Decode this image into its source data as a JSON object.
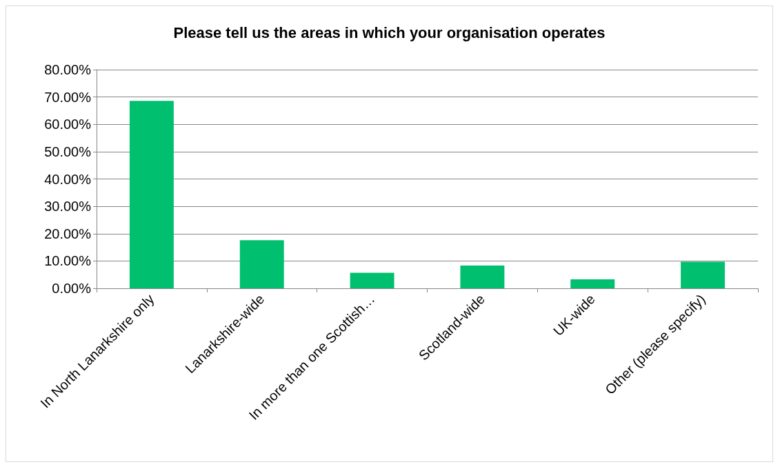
{
  "chart_data": {
    "type": "bar",
    "title": "Please tell us the areas in which your organisation operates",
    "categories": [
      "In North Lanarkshire only",
      "Lanarkshire-wide",
      "In more than one Scottish…",
      "Scotland-wide",
      "UK-wide",
      "Other (please specify)"
    ],
    "values": [
      68.6,
      17.6,
      5.7,
      8.3,
      3.3,
      9.7
    ],
    "color": "#00c06f",
    "ylim": [
      0,
      80
    ],
    "yticks": [
      {
        "value": 0,
        "label": "0.00%"
      },
      {
        "value": 10,
        "label": "10.00%"
      },
      {
        "value": 20,
        "label": "20.00%"
      },
      {
        "value": 30,
        "label": "30.00%"
      },
      {
        "value": 40,
        "label": "40.00%"
      },
      {
        "value": 50,
        "label": "50.00%"
      },
      {
        "value": 60,
        "label": "60.00%"
      },
      {
        "value": 70,
        "label": "70.00%"
      },
      {
        "value": 80,
        "label": "80.00%"
      }
    ],
    "grid": "y"
  }
}
